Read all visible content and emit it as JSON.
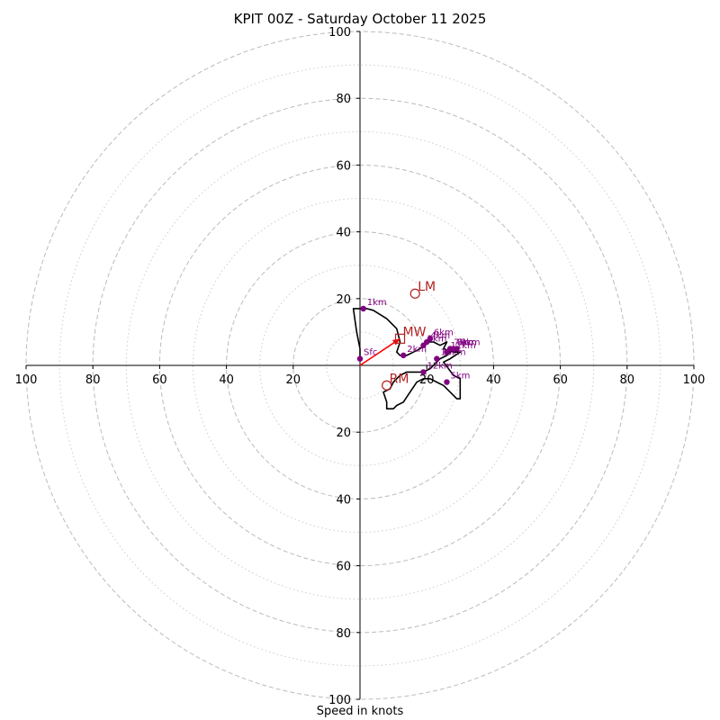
{
  "title": "KPIT 00Z - Saturday October 11 2025",
  "xlabel": "Speed in knots",
  "colors": {
    "hodograph": "#000000",
    "levels": "#800080",
    "motion": "#b22222",
    "mean_wind_vector": "#ff0000",
    "ring_major": "#bbbbbb",
    "ring_minor": "#cccccc",
    "axes": "#000000"
  },
  "chart_data": {
    "type": "hodograph",
    "units": "knots",
    "xlim": [
      -100,
      100
    ],
    "ylim": [
      -100,
      100
    ],
    "major_rings": [
      20,
      40,
      60,
      80,
      100
    ],
    "minor_rings": [
      10,
      30,
      50,
      70,
      90
    ],
    "x_ticks": [
      "100",
      "80",
      "60",
      "40",
      "20",
      "20",
      "40",
      "60",
      "80",
      "100"
    ],
    "x_tick_values": [
      -100,
      -80,
      -60,
      -40,
      -20,
      20,
      40,
      60,
      80,
      100
    ],
    "y_ticks": [
      "100",
      "80",
      "60",
      "40",
      "20",
      "20",
      "40",
      "60",
      "80",
      "100"
    ],
    "y_tick_values": [
      100,
      80,
      60,
      40,
      20,
      -20,
      -40,
      -60,
      -80,
      -100
    ],
    "hodograph": {
      "u": [
        0,
        0,
        -1,
        -2,
        0,
        2,
        4,
        8,
        11,
        12,
        11,
        12,
        14,
        16,
        18,
        19,
        20,
        22,
        24,
        26,
        25,
        28,
        30,
        27,
        25,
        28,
        30,
        30,
        29,
        27,
        25,
        23,
        21,
        19,
        17,
        15,
        13,
        11,
        10,
        9,
        8,
        8,
        8,
        7,
        9,
        10,
        12,
        14,
        17,
        19,
        21,
        22,
        24,
        26,
        27,
        28
      ],
      "v": [
        2,
        5,
        10,
        17,
        17,
        17,
        16.5,
        14,
        11,
        7,
        4,
        3,
        3,
        4,
        5,
        6,
        7,
        7,
        6,
        7,
        5,
        4,
        4,
        2,
        1,
        -3,
        -4,
        -10,
        -10,
        -8,
        -6,
        -5,
        -4,
        -4,
        -5,
        -8,
        -11,
        -12,
        -13,
        -13,
        -13,
        -11,
        -11,
        -8,
        -7,
        -5,
        -3,
        -2,
        -2,
        -2,
        -1,
        0,
        2,
        3,
        4,
        5
      ]
    },
    "levels": [
      {
        "label": "Sfc",
        "u": 0,
        "v": 2
      },
      {
        "label": "1km",
        "u": 1,
        "v": 17
      },
      {
        "label": "2km",
        "u": 13,
        "v": 3
      },
      {
        "label": "3km",
        "u": 19,
        "v": 6
      },
      {
        "label": "4km",
        "u": 20,
        "v": 7
      },
      {
        "label": "5km",
        "u": 26,
        "v": -5
      },
      {
        "label": "6km",
        "u": 21,
        "v": 8
      },
      {
        "label": "7km",
        "u": 27,
        "v": 5
      },
      {
        "label": "8km",
        "u": 28,
        "v": 5
      },
      {
        "label": "9km",
        "u": 29,
        "v": 5
      },
      {
        "label": "10km",
        "u": 23,
        "v": 2
      },
      {
        "label": "11km",
        "u": 26,
        "v": 4
      },
      {
        "label": "12km",
        "u": 19,
        "v": -2
      }
    ],
    "storm_motion": [
      {
        "label": "LM",
        "u": 16.5,
        "v": 21.5,
        "marker": "circle"
      },
      {
        "label": "MW",
        "u": 12,
        "v": 8,
        "marker": "square"
      },
      {
        "label": "RM",
        "u": 8,
        "v": -6,
        "marker": "circle"
      }
    ],
    "mean_wind_vector": {
      "u": 12,
      "v": 8
    }
  }
}
